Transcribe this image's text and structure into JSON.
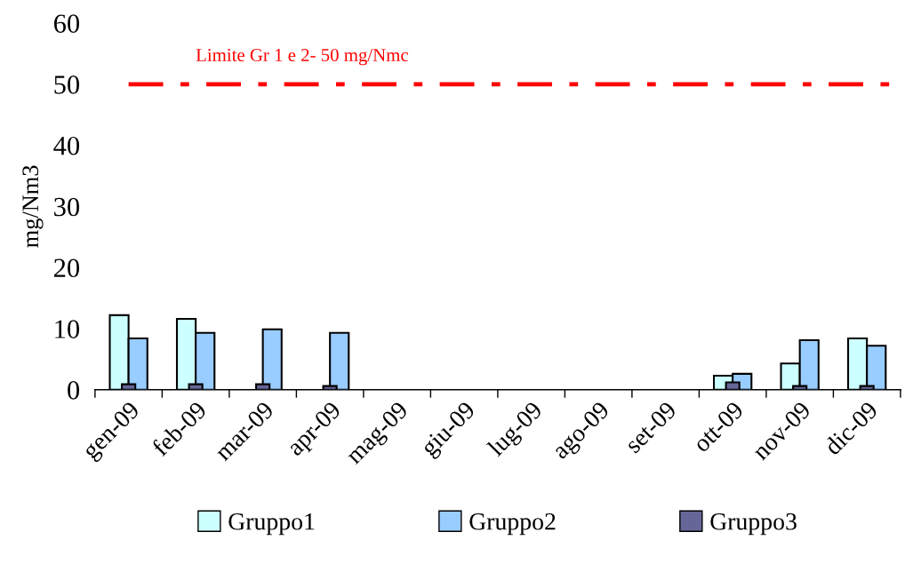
{
  "chart_data": {
    "type": "bar",
    "ylabel": "mg/Nm3",
    "categories": [
      "gen-09",
      "feb-09",
      "mar-09",
      "apr-09",
      "mag-09",
      "giu-09",
      "lug-09",
      "ago-09",
      "set-09",
      "ott-09",
      "nov-09",
      "dic-09"
    ],
    "series": [
      {
        "name": "Gruppo1",
        "color": "#ccffff",
        "values": [
          12.2,
          11.6,
          null,
          null,
          null,
          null,
          null,
          null,
          null,
          2.3,
          4.3,
          8.4
        ]
      },
      {
        "name": "Gruppo2",
        "color": "#99ccff",
        "values": [
          8.4,
          9.3,
          9.9,
          9.3,
          null,
          null,
          null,
          null,
          null,
          2.6,
          8.1,
          7.2
        ]
      },
      {
        "name": "Gruppo3",
        "color": "#666699",
        "values": [
          0.9,
          0.9,
          0.9,
          0.6,
          null,
          null,
          null,
          null,
          null,
          1.2,
          0.6,
          0.6
        ]
      }
    ],
    "ylim": [
      0,
      60
    ],
    "yticks": [
      0,
      10,
      20,
      30,
      40,
      50,
      60
    ],
    "ref_lines": [
      {
        "axis": "y",
        "value": 50,
        "label": "Limite Gr 1 e 2- 50 mg/Nmc",
        "color": "#ff0000",
        "line_style": "dashdot"
      }
    ],
    "grid": false,
    "legend": "bottom"
  }
}
